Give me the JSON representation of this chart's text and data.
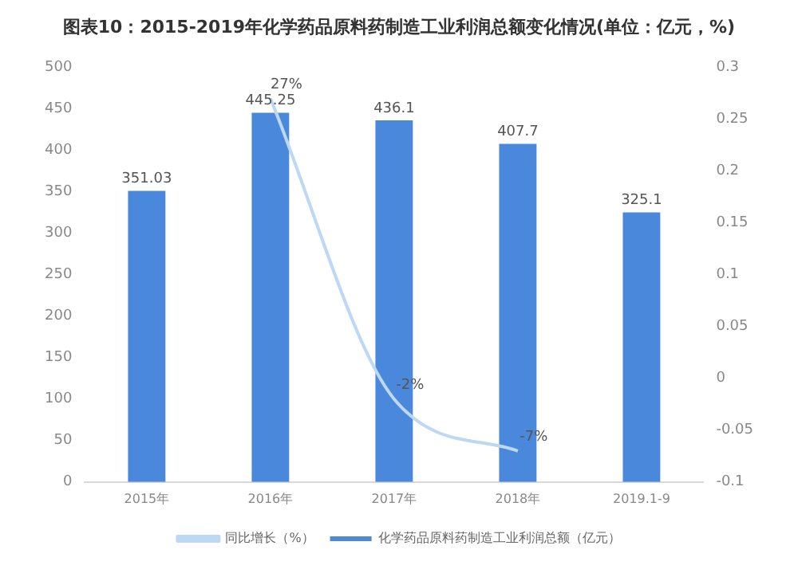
{
  "chart_data": {
    "type": "bar",
    "title": "图表10：2015-2019年化学药品原料药制造工业利润总额变化情况(单位：亿元，%)",
    "categories": [
      "2015年",
      "2016年",
      "2017年",
      "2018年",
      "2019.1-9"
    ],
    "series": [
      {
        "name": "化学药品原料药制造工业利润总额（亿元）",
        "color": "#4a88dc",
        "values": [
          351.03,
          445.25,
          436.1,
          407.7,
          325.1
        ],
        "value_labels": [
          "351.03",
          "445.25",
          "436.1",
          "407.7",
          "325.1"
        ]
      },
      {
        "name": "同比增长（%）",
        "type": "line",
        "axis": "y2",
        "color": "#bcd8f5",
        "values": [
          null,
          0.27,
          -0.02,
          -0.07,
          null
        ],
        "value_labels": [
          null,
          "27%",
          "-2%",
          "-7%",
          null
        ]
      }
    ],
    "ylim": [
      0,
      500
    ],
    "yticks": [
      0,
      50,
      100,
      150,
      200,
      250,
      300,
      350,
      400,
      450,
      500
    ],
    "y2lim": [
      -0.1,
      0.3
    ],
    "y2ticks": [
      -0.1,
      -0.05,
      0,
      0.05,
      0.1,
      0.15,
      0.2,
      0.25,
      0.3
    ],
    "legend": "bottom",
    "grid": false,
    "marker": "none"
  }
}
